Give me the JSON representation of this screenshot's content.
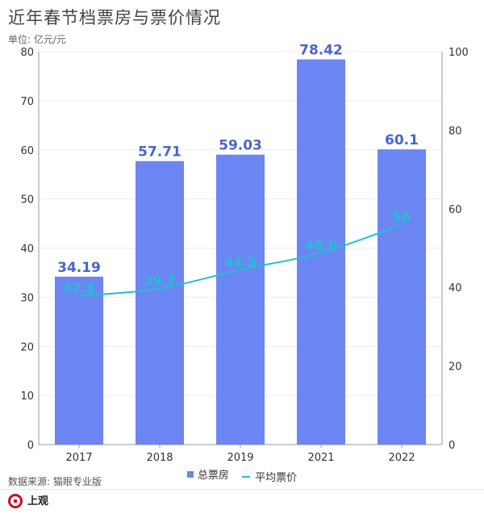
{
  "header": {
    "title": "近年春节档票房与票价情况",
    "unit": "单位: 亿元/元"
  },
  "colors": {
    "bar": "#6b86f2",
    "line": "#22bfd4",
    "axis": "#999999",
    "text": "#333333"
  },
  "footer": {
    "source": "数据来源: 猫眼专业版",
    "brand": "上观"
  },
  "chart_data": {
    "type": "bar",
    "categories": [
      "2017",
      "2018",
      "2019",
      "2021",
      "2022"
    ],
    "series": [
      {
        "name": "总票房",
        "type": "bar",
        "axis": "left",
        "values": [
          34.19,
          57.71,
          59.03,
          78.42,
          60.1
        ],
        "labels": [
          "34.19",
          "57.71",
          "59.03",
          "78.42",
          "60.1"
        ]
      },
      {
        "name": "平均票价",
        "type": "line",
        "axis": "right",
        "values": [
          37.8,
          39.7,
          44.5,
          48.8,
          56
        ],
        "labels": [
          "37.8",
          "39.7",
          "44.5",
          "48.8",
          "56"
        ]
      }
    ],
    "y_left": {
      "min": 0,
      "max": 80,
      "ticks": [
        "0",
        "10",
        "20",
        "30",
        "40",
        "50",
        "60",
        "70",
        "80"
      ]
    },
    "y_right": {
      "min": 0,
      "max": 100,
      "ticks": [
        "0",
        "20",
        "40",
        "60",
        "80",
        "100"
      ]
    },
    "grid": true,
    "legend": "bottom"
  }
}
